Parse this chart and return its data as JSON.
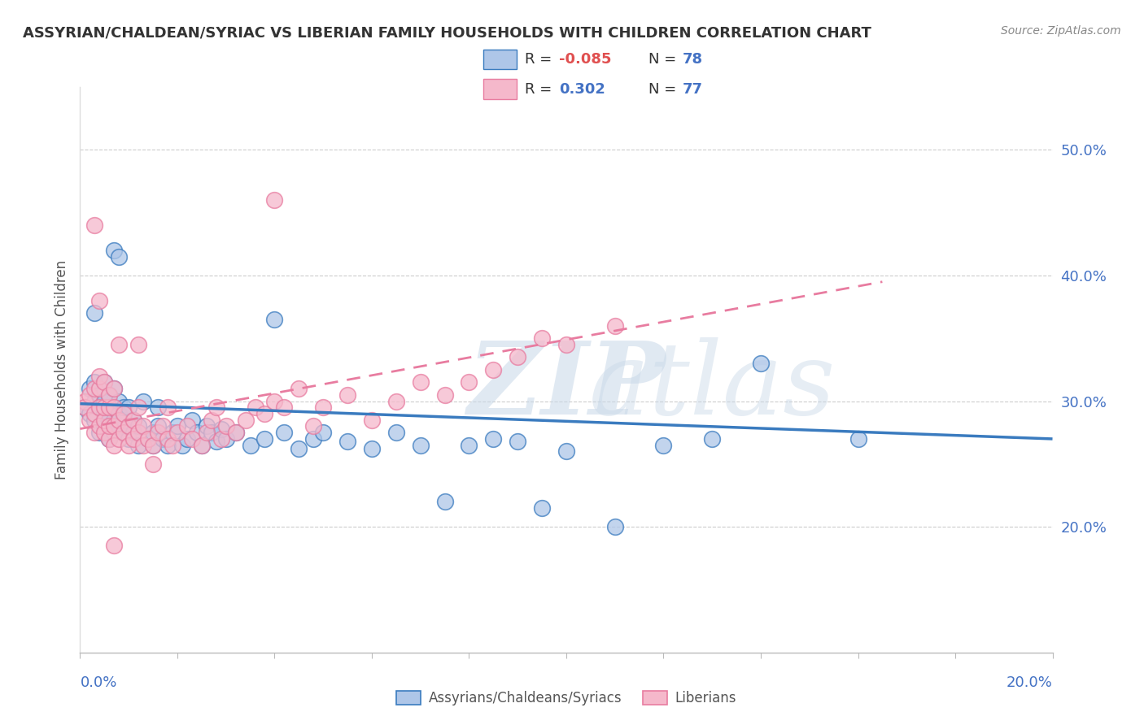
{
  "title": "ASSYRIAN/CHALDEAN/SYRIAC VS LIBERIAN FAMILY HOUSEHOLDS WITH CHILDREN CORRELATION CHART",
  "source": "Source: ZipAtlas.com",
  "ylabel": "Family Households with Children",
  "yticks_labels": [
    "50.0%",
    "40.0%",
    "30.0%",
    "20.0%"
  ],
  "ytick_vals": [
    0.5,
    0.4,
    0.3,
    0.2
  ],
  "xlim": [
    0.0,
    0.2
  ],
  "ylim": [
    0.1,
    0.55
  ],
  "color_blue": "#aec6e8",
  "color_pink": "#f5b8cb",
  "color_blue_dark": "#3a7bbf",
  "color_pink_dark": "#e87ca0",
  "legend_entries": [
    "Assyrians/Chaldeans/Syriacs",
    "Liberians"
  ],
  "blue_scatter": [
    [
      0.001,
      0.295
    ],
    [
      0.002,
      0.29
    ],
    [
      0.002,
      0.31
    ],
    [
      0.003,
      0.285
    ],
    [
      0.003,
      0.3
    ],
    [
      0.003,
      0.315
    ],
    [
      0.004,
      0.275
    ],
    [
      0.004,
      0.295
    ],
    [
      0.004,
      0.305
    ],
    [
      0.005,
      0.28
    ],
    [
      0.005,
      0.29
    ],
    [
      0.005,
      0.3
    ],
    [
      0.005,
      0.315
    ],
    [
      0.006,
      0.27
    ],
    [
      0.006,
      0.285
    ],
    [
      0.006,
      0.295
    ],
    [
      0.006,
      0.305
    ],
    [
      0.007,
      0.275
    ],
    [
      0.007,
      0.285
    ],
    [
      0.007,
      0.295
    ],
    [
      0.007,
      0.31
    ],
    [
      0.008,
      0.28
    ],
    [
      0.008,
      0.29
    ],
    [
      0.008,
      0.3
    ],
    [
      0.009,
      0.275
    ],
    [
      0.009,
      0.285
    ],
    [
      0.009,
      0.295
    ],
    [
      0.01,
      0.27
    ],
    [
      0.01,
      0.28
    ],
    [
      0.01,
      0.295
    ],
    [
      0.011,
      0.275
    ],
    [
      0.011,
      0.285
    ],
    [
      0.012,
      0.265
    ],
    [
      0.012,
      0.28
    ],
    [
      0.013,
      0.3
    ],
    [
      0.014,
      0.27
    ],
    [
      0.015,
      0.265
    ],
    [
      0.015,
      0.275
    ],
    [
      0.016,
      0.28
    ],
    [
      0.016,
      0.295
    ],
    [
      0.017,
      0.27
    ],
    [
      0.018,
      0.265
    ],
    [
      0.019,
      0.275
    ],
    [
      0.02,
      0.28
    ],
    [
      0.021,
      0.265
    ],
    [
      0.022,
      0.27
    ],
    [
      0.023,
      0.285
    ],
    [
      0.024,
      0.275
    ],
    [
      0.025,
      0.265
    ],
    [
      0.026,
      0.28
    ],
    [
      0.027,
      0.275
    ],
    [
      0.028,
      0.268
    ],
    [
      0.029,
      0.278
    ],
    [
      0.03,
      0.27
    ],
    [
      0.032,
      0.275
    ],
    [
      0.035,
      0.265
    ],
    [
      0.038,
      0.27
    ],
    [
      0.04,
      0.365
    ],
    [
      0.042,
      0.275
    ],
    [
      0.045,
      0.262
    ],
    [
      0.048,
      0.27
    ],
    [
      0.05,
      0.275
    ],
    [
      0.055,
      0.268
    ],
    [
      0.06,
      0.262
    ],
    [
      0.065,
      0.275
    ],
    [
      0.07,
      0.265
    ],
    [
      0.075,
      0.22
    ],
    [
      0.08,
      0.265
    ],
    [
      0.085,
      0.27
    ],
    [
      0.09,
      0.268
    ],
    [
      0.095,
      0.215
    ],
    [
      0.1,
      0.26
    ],
    [
      0.11,
      0.2
    ],
    [
      0.12,
      0.265
    ],
    [
      0.13,
      0.27
    ],
    [
      0.14,
      0.33
    ],
    [
      0.007,
      0.42
    ],
    [
      0.008,
      0.415
    ],
    [
      0.003,
      0.37
    ],
    [
      0.16,
      0.27
    ]
  ],
  "pink_scatter": [
    [
      0.001,
      0.3
    ],
    [
      0.001,
      0.295
    ],
    [
      0.002,
      0.285
    ],
    [
      0.002,
      0.305
    ],
    [
      0.003,
      0.275
    ],
    [
      0.003,
      0.29
    ],
    [
      0.003,
      0.31
    ],
    [
      0.003,
      0.44
    ],
    [
      0.004,
      0.28
    ],
    [
      0.004,
      0.295
    ],
    [
      0.004,
      0.31
    ],
    [
      0.004,
      0.32
    ],
    [
      0.005,
      0.275
    ],
    [
      0.005,
      0.285
    ],
    [
      0.005,
      0.295
    ],
    [
      0.005,
      0.315
    ],
    [
      0.006,
      0.27
    ],
    [
      0.006,
      0.28
    ],
    [
      0.006,
      0.295
    ],
    [
      0.006,
      0.305
    ],
    [
      0.007,
      0.265
    ],
    [
      0.007,
      0.28
    ],
    [
      0.007,
      0.295
    ],
    [
      0.007,
      0.31
    ],
    [
      0.008,
      0.27
    ],
    [
      0.008,
      0.285
    ],
    [
      0.009,
      0.275
    ],
    [
      0.009,
      0.29
    ],
    [
      0.01,
      0.265
    ],
    [
      0.01,
      0.28
    ],
    [
      0.011,
      0.27
    ],
    [
      0.011,
      0.285
    ],
    [
      0.012,
      0.275
    ],
    [
      0.012,
      0.295
    ],
    [
      0.013,
      0.265
    ],
    [
      0.013,
      0.28
    ],
    [
      0.014,
      0.27
    ],
    [
      0.015,
      0.265
    ],
    [
      0.015,
      0.25
    ],
    [
      0.016,
      0.275
    ],
    [
      0.017,
      0.28
    ],
    [
      0.018,
      0.27
    ],
    [
      0.018,
      0.295
    ],
    [
      0.019,
      0.265
    ],
    [
      0.02,
      0.275
    ],
    [
      0.022,
      0.28
    ],
    [
      0.023,
      0.27
    ],
    [
      0.025,
      0.265
    ],
    [
      0.026,
      0.275
    ],
    [
      0.027,
      0.285
    ],
    [
      0.028,
      0.295
    ],
    [
      0.029,
      0.27
    ],
    [
      0.03,
      0.28
    ],
    [
      0.032,
      0.275
    ],
    [
      0.034,
      0.285
    ],
    [
      0.036,
      0.295
    ],
    [
      0.038,
      0.29
    ],
    [
      0.04,
      0.3
    ],
    [
      0.042,
      0.295
    ],
    [
      0.045,
      0.31
    ],
    [
      0.048,
      0.28
    ],
    [
      0.05,
      0.295
    ],
    [
      0.055,
      0.305
    ],
    [
      0.06,
      0.285
    ],
    [
      0.065,
      0.3
    ],
    [
      0.07,
      0.315
    ],
    [
      0.075,
      0.305
    ],
    [
      0.08,
      0.315
    ],
    [
      0.085,
      0.325
    ],
    [
      0.09,
      0.335
    ],
    [
      0.095,
      0.35
    ],
    [
      0.1,
      0.345
    ],
    [
      0.11,
      0.36
    ],
    [
      0.004,
      0.38
    ],
    [
      0.04,
      0.46
    ],
    [
      0.008,
      0.345
    ],
    [
      0.012,
      0.345
    ],
    [
      0.007,
      0.185
    ]
  ],
  "blue_line_x": [
    0.0,
    0.2
  ],
  "blue_line_y": [
    0.298,
    0.27
  ],
  "pink_line_x": [
    0.0,
    0.165
  ],
  "pink_line_y": [
    0.278,
    0.395
  ]
}
